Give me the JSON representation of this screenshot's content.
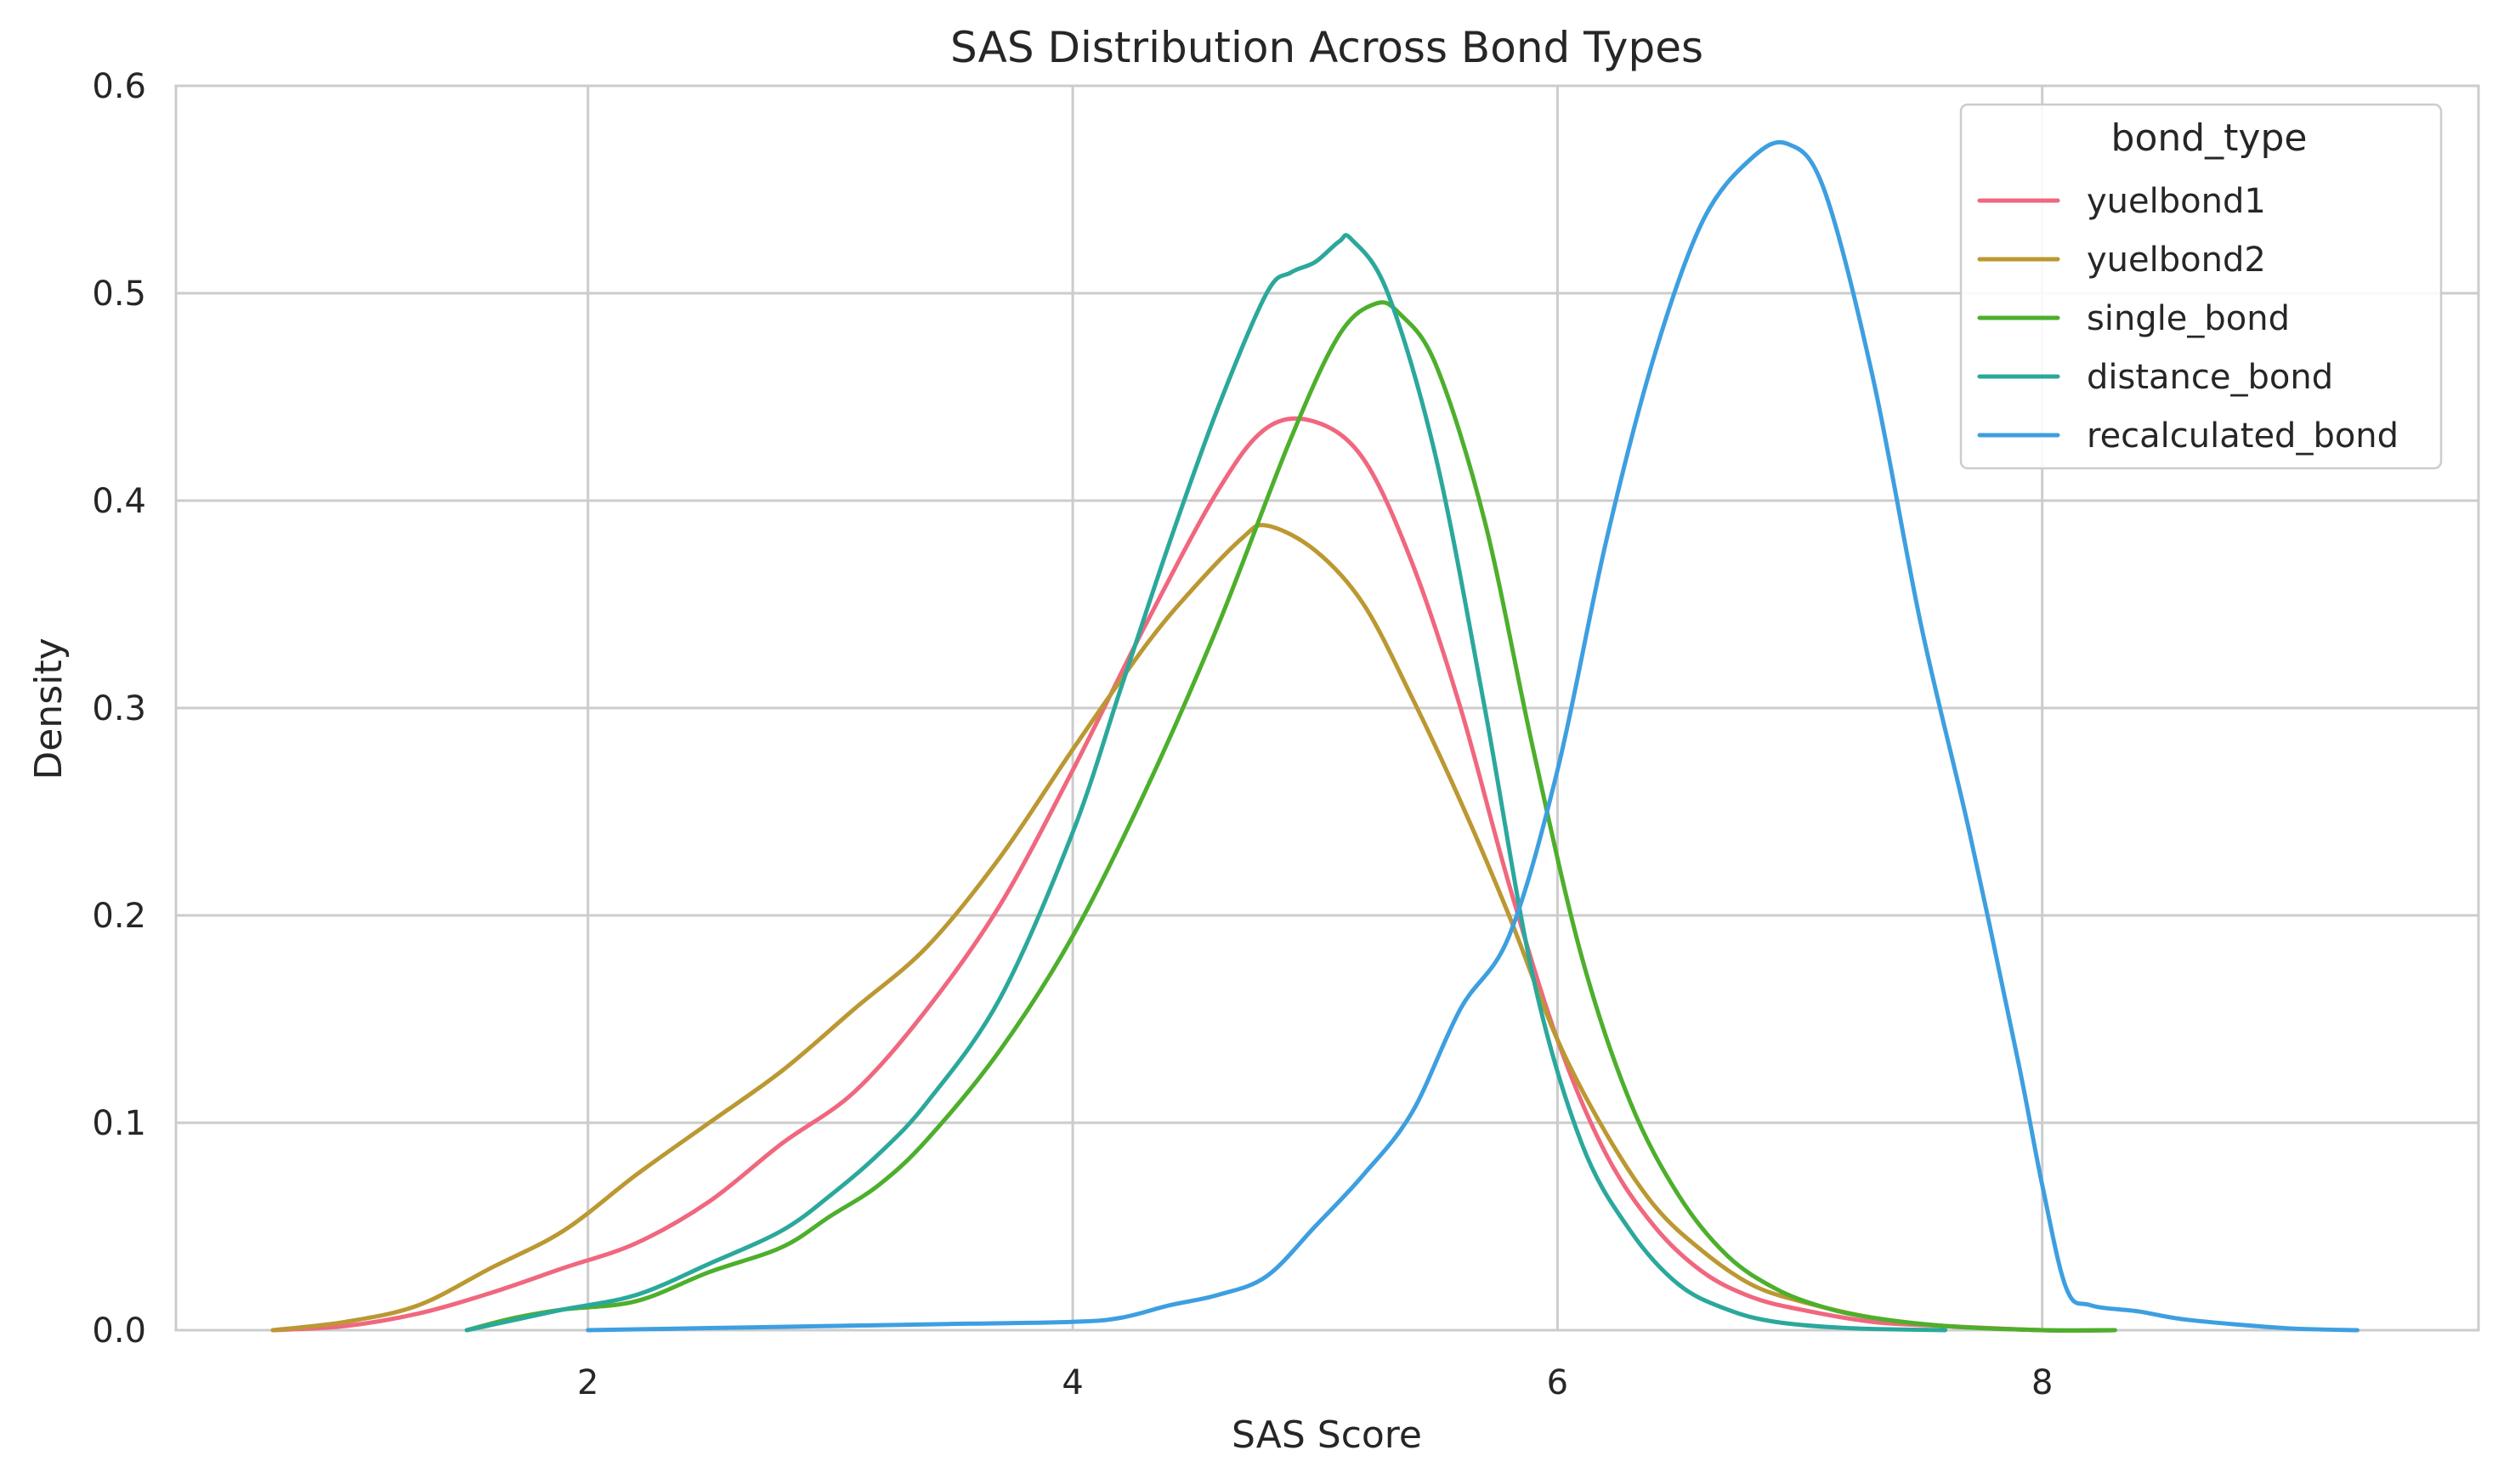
{
  "chart_data": {
    "type": "line",
    "title": "SAS Distribution Across Bond Types",
    "xlabel": "SAS Score",
    "ylabel": "Density",
    "xlim": [
      0.3,
      9.8
    ],
    "ylim": [
      0,
      0.6
    ],
    "xticks": [
      2,
      4,
      6,
      8
    ],
    "yticks": [
      0.0,
      0.1,
      0.2,
      0.3,
      0.4,
      0.5,
      0.6
    ],
    "xtick_labels": [
      "2",
      "4",
      "6",
      "8"
    ],
    "ytick_labels": [
      "0.0",
      "0.1",
      "0.2",
      "0.3",
      "0.4",
      "0.5",
      "0.6"
    ],
    "grid": true,
    "legend": {
      "title": "bond_type",
      "placement": "top-right"
    },
    "series": [
      {
        "name": "yuelbond1",
        "color": "#f0677e",
        "x": [
          0.7,
          1.0,
          1.3,
          1.6,
          1.9,
          2.2,
          2.5,
          2.8,
          3.1,
          3.4,
          3.7,
          4.0,
          4.3,
          4.6,
          4.8,
          5.0,
          5.2,
          5.4,
          5.6,
          5.8,
          6.0,
          6.2,
          6.4,
          6.6,
          6.8,
          7.0,
          7.3,
          7.6,
          8.0,
          8.3
        ],
        "y": [
          0.0,
          0.002,
          0.008,
          0.018,
          0.03,
          0.042,
          0.062,
          0.09,
          0.115,
          0.155,
          0.205,
          0.27,
          0.34,
          0.405,
          0.435,
          0.438,
          0.42,
          0.37,
          0.3,
          0.215,
          0.14,
          0.085,
          0.05,
          0.028,
          0.016,
          0.01,
          0.004,
          0.002,
          0.0,
          0.0
        ]
      },
      {
        "name": "yuelbond2",
        "color": "#bb9832",
        "x": [
          0.7,
          1.0,
          1.3,
          1.6,
          1.9,
          2.2,
          2.5,
          2.8,
          3.1,
          3.4,
          3.7,
          4.0,
          4.3,
          4.5,
          4.7,
          4.8,
          5.0,
          5.2,
          5.4,
          5.6,
          5.8,
          6.0,
          6.2,
          6.4,
          6.6,
          6.8,
          7.0,
          7.3,
          7.6,
          8.0,
          8.3
        ],
        "y": [
          0.0,
          0.004,
          0.012,
          0.03,
          0.048,
          0.075,
          0.1,
          0.125,
          0.155,
          0.185,
          0.228,
          0.28,
          0.33,
          0.358,
          0.382,
          0.388,
          0.376,
          0.35,
          0.305,
          0.255,
          0.2,
          0.14,
          0.095,
          0.06,
          0.038,
          0.022,
          0.014,
          0.006,
          0.002,
          0.0,
          0.0
        ]
      },
      {
        "name": "single_bond",
        "color": "#4daf2c",
        "x": [
          1.5,
          1.7,
          1.9,
          2.2,
          2.5,
          2.8,
          3.0,
          3.2,
          3.4,
          3.7,
          4.0,
          4.3,
          4.6,
          4.9,
          5.1,
          5.25,
          5.35,
          5.5,
          5.7,
          5.9,
          6.1,
          6.3,
          6.5,
          6.7,
          6.9,
          7.1,
          7.3,
          7.6,
          8.0,
          8.3
        ],
        "y": [
          0.0,
          0.006,
          0.01,
          0.014,
          0.028,
          0.04,
          0.055,
          0.07,
          0.092,
          0.135,
          0.19,
          0.26,
          0.34,
          0.43,
          0.48,
          0.495,
          0.49,
          0.465,
          0.39,
          0.28,
          0.18,
          0.11,
          0.065,
          0.036,
          0.02,
          0.011,
          0.006,
          0.002,
          0.0,
          0.0
        ]
      },
      {
        "name": "distance_bond",
        "color": "#2ba89c",
        "x": [
          1.5,
          1.7,
          1.9,
          2.2,
          2.5,
          2.8,
          3.0,
          3.2,
          3.4,
          3.7,
          4.0,
          4.2,
          4.4,
          4.6,
          4.8,
          4.9,
          5.0,
          5.1,
          5.15,
          5.3,
          5.5,
          5.7,
          5.9,
          6.1,
          6.3,
          6.5,
          6.7,
          6.9,
          7.2,
          7.6
        ],
        "y": [
          0.0,
          0.005,
          0.01,
          0.017,
          0.032,
          0.048,
          0.065,
          0.085,
          0.11,
          0.16,
          0.24,
          0.31,
          0.38,
          0.445,
          0.5,
          0.51,
          0.515,
          0.525,
          0.526,
          0.5,
          0.42,
          0.3,
          0.17,
          0.09,
          0.048,
          0.022,
          0.01,
          0.004,
          0.001,
          0.0
        ]
      },
      {
        "name": "recalculated_bond",
        "color": "#3d9fe0",
        "x": [
          2.0,
          2.5,
          3.0,
          3.5,
          4.0,
          4.2,
          4.4,
          4.6,
          4.8,
          5.0,
          5.2,
          5.4,
          5.6,
          5.8,
          6.0,
          6.2,
          6.4,
          6.6,
          6.8,
          6.95,
          7.1,
          7.3,
          7.5,
          7.7,
          7.9,
          8.0,
          8.1,
          8.2,
          8.4,
          8.6,
          9.0,
          9.3
        ],
        "y": [
          0.0,
          0.001,
          0.002,
          0.003,
          0.004,
          0.006,
          0.012,
          0.017,
          0.026,
          0.05,
          0.075,
          0.105,
          0.155,
          0.19,
          0.27,
          0.38,
          0.47,
          0.535,
          0.565,
          0.572,
          0.55,
          0.46,
          0.34,
          0.24,
          0.13,
          0.07,
          0.02,
          0.012,
          0.009,
          0.005,
          0.001,
          0.0
        ]
      }
    ]
  }
}
